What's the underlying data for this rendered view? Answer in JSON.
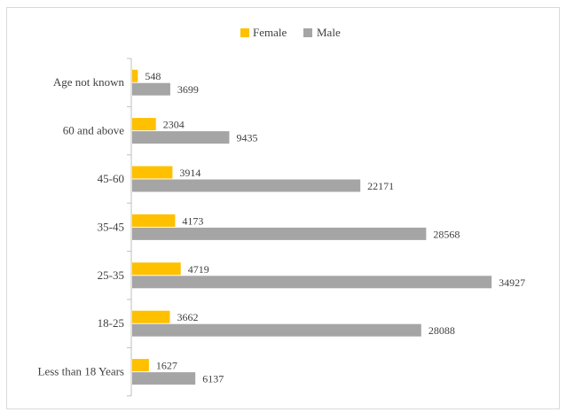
{
  "chart_data": {
    "type": "bar",
    "orientation": "horizontal",
    "title": "",
    "xlabel": "",
    "ylabel": "",
    "legend_position": "top-center",
    "grid": false,
    "categories": [
      "Age not known",
      "60 and above",
      "45-60",
      "35-45",
      "25-35",
      "18-25",
      "Less than 18 Years"
    ],
    "series": [
      {
        "name": "Female",
        "color": "#ffc000",
        "values": [
          548,
          2304,
          3914,
          4173,
          4719,
          3662,
          1627
        ]
      },
      {
        "name": "Male",
        "color": "#a5a5a5",
        "values": [
          3699,
          9435,
          22171,
          28568,
          34927,
          28088,
          6137
        ]
      }
    ],
    "xlim": [
      0,
      35000
    ],
    "data_labels": true
  }
}
